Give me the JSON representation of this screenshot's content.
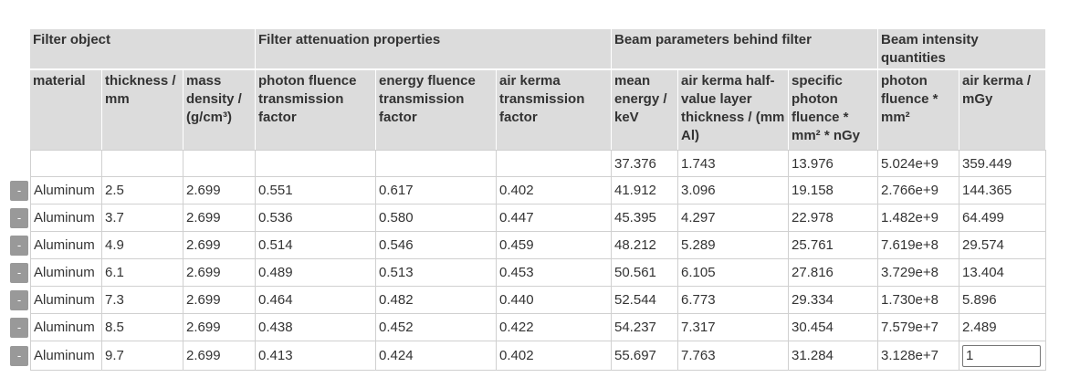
{
  "groups": {
    "filter_object": "Filter object",
    "filter_attenuation": "Filter attenuation properties",
    "beam_parameters": "Beam parameters behind filter",
    "beam_intensity": "Beam intensity quantities"
  },
  "columns": {
    "material": "material",
    "thickness": "thickness / mm",
    "mass_density": "mass density / (g/cm³)",
    "photon_fluence_tf": "photon fluence transmission factor",
    "energy_fluence_tf": "energy fluence transmission factor",
    "air_kerma_tf": "air kerma transmission factor",
    "mean_energy": "mean energy / keV",
    "hvl": "air kerma half-value layer thickness / (mm Al)",
    "specific_photon_fluence": "specific photon fluence * mm² * nGy",
    "photon_fluence": "photon fluence * mm²",
    "air_kerma": "air kerma / mGy"
  },
  "unfiltered_row": {
    "mean_energy": "37.376",
    "hvl": "1.743",
    "specific_photon_fluence": "13.976",
    "photon_fluence": "5.024e+9",
    "air_kerma": "359.449"
  },
  "remove_button_label": "-",
  "rows": [
    {
      "material": "Aluminum",
      "thickness": "2.5",
      "mass_density": "2.699",
      "photon_fluence_tf": "0.551",
      "energy_fluence_tf": "0.617",
      "air_kerma_tf": "0.402",
      "mean_energy": "41.912",
      "hvl": "3.096",
      "specific_photon_fluence": "19.158",
      "photon_fluence": "2.766e+9",
      "air_kerma": "144.365"
    },
    {
      "material": "Aluminum",
      "thickness": "3.7",
      "mass_density": "2.699",
      "photon_fluence_tf": "0.536",
      "energy_fluence_tf": "0.580",
      "air_kerma_tf": "0.447",
      "mean_energy": "45.395",
      "hvl": "4.297",
      "specific_photon_fluence": "22.978",
      "photon_fluence": "1.482e+9",
      "air_kerma": "64.499"
    },
    {
      "material": "Aluminum",
      "thickness": "4.9",
      "mass_density": "2.699",
      "photon_fluence_tf": "0.514",
      "energy_fluence_tf": "0.546",
      "air_kerma_tf": "0.459",
      "mean_energy": "48.212",
      "hvl": "5.289",
      "specific_photon_fluence": "25.761",
      "photon_fluence": "7.619e+8",
      "air_kerma": "29.574"
    },
    {
      "material": "Aluminum",
      "thickness": "6.1",
      "mass_density": "2.699",
      "photon_fluence_tf": "0.489",
      "energy_fluence_tf": "0.513",
      "air_kerma_tf": "0.453",
      "mean_energy": "50.561",
      "hvl": "6.105",
      "specific_photon_fluence": "27.816",
      "photon_fluence": "3.729e+8",
      "air_kerma": "13.404"
    },
    {
      "material": "Aluminum",
      "thickness": "7.3",
      "mass_density": "2.699",
      "photon_fluence_tf": "0.464",
      "energy_fluence_tf": "0.482",
      "air_kerma_tf": "0.440",
      "mean_energy": "52.544",
      "hvl": "6.773",
      "specific_photon_fluence": "29.334",
      "photon_fluence": "1.730e+8",
      "air_kerma": "5.896"
    },
    {
      "material": "Aluminum",
      "thickness": "8.5",
      "mass_density": "2.699",
      "photon_fluence_tf": "0.438",
      "energy_fluence_tf": "0.452",
      "air_kerma_tf": "0.422",
      "mean_energy": "54.237",
      "hvl": "7.317",
      "specific_photon_fluence": "30.454",
      "photon_fluence": "7.579e+7",
      "air_kerma": "2.489"
    },
    {
      "material": "Aluminum",
      "thickness": "9.7",
      "mass_density": "2.699",
      "photon_fluence_tf": "0.413",
      "energy_fluence_tf": "0.424",
      "air_kerma_tf": "0.402",
      "mean_energy": "55.697",
      "hvl": "7.763",
      "specific_photon_fluence": "31.284",
      "photon_fluence": "3.128e+7"
    }
  ],
  "last_row_air_kerma_input": "1",
  "colors": {
    "header_bg": "#dcdcdc",
    "button_bg": "#999999",
    "grid_line": "#d0d0d0",
    "text": "#333333"
  }
}
